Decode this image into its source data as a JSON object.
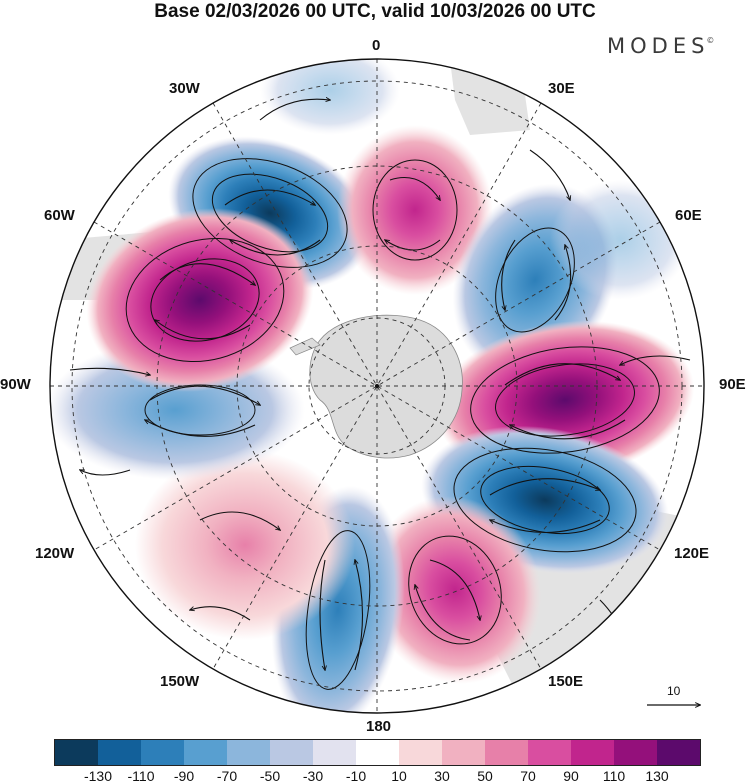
{
  "title": "Base 02/03/2026 00 UTC, valid 10/03/2026 00 UTC",
  "brand": "MODES",
  "brand_mark": "©",
  "longitude_labels": {
    "lon_0": "0",
    "lon_30e": "30E",
    "lon_60e": "60E",
    "lon_90e": "90E",
    "lon_120e": "120E",
    "lon_150e": "150E",
    "lon_180": "180",
    "lon_150w": "150W",
    "lon_120w": "120W",
    "lon_90w": "90W",
    "lon_60w": "60W",
    "lon_30w": "30W"
  },
  "reference_vector": "10",
  "colorbar": {
    "colors": [
      "#0c3a5c",
      "#12609a",
      "#2d7fb9",
      "#589fd0",
      "#8cb6dc",
      "#bac8e3",
      "#e2e2ef",
      "#ffffff",
      "#f8d8da",
      "#f1b1c1",
      "#e780a9",
      "#d94ea0",
      "#c1258d",
      "#94107b",
      "#5c0a6c"
    ],
    "tick_labels": [
      "-130",
      "-110",
      "-90",
      "-70",
      "-50",
      "-30",
      "-10",
      "10",
      "30",
      "50",
      "70",
      "90",
      "110",
      "130"
    ]
  },
  "colors": {
    "land_fill": "#dcdcdc",
    "coast": "#8a8a8a",
    "grid": "#333333",
    "streamline": "#111111"
  },
  "map_data": {
    "projection": "south-polar-stereographic",
    "field": "anomaly with wind streamlines",
    "anomaly_centers": [
      {
        "name": "30W-60W low",
        "lon": -40,
        "value": -130
      },
      {
        "name": "15E high",
        "lon": 15,
        "value": 90
      },
      {
        "name": "55E low",
        "lon": 55,
        "value": -90
      },
      {
        "name": "90E high",
        "lon": 95,
        "value": 130
      },
      {
        "name": "115E low",
        "lon": 118,
        "value": -130
      },
      {
        "name": "150E high",
        "lon": 150,
        "value": 90
      },
      {
        "name": "175W low",
        "lon": -175,
        "value": -70
      },
      {
        "name": "130W high",
        "lon": -135,
        "value": 50
      },
      {
        "name": "95W low",
        "lon": -95,
        "value": -70
      },
      {
        "name": "65W high",
        "lon": -65,
        "value": 110
      }
    ]
  }
}
